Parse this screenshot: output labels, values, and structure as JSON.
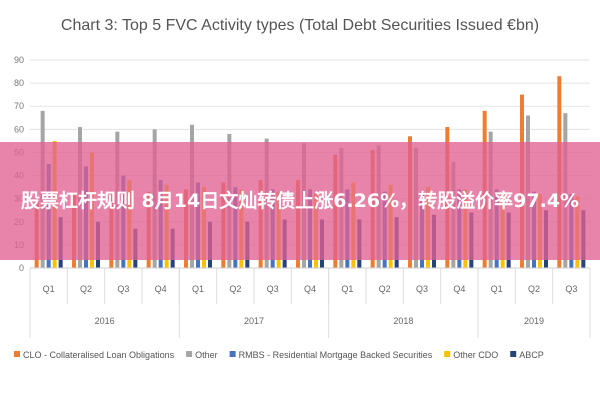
{
  "chart_data": {
    "type": "bar",
    "title": "Chart 3: Top 5 FVC Activity types (Total Debt Securities Issued €bn)",
    "ylim": [
      0,
      90
    ],
    "yticks": [
      0,
      10,
      20,
      30,
      40,
      50,
      60,
      70,
      80,
      90
    ],
    "grid": true,
    "legend_position": "bottom",
    "categories": [
      "Q1",
      "Q2",
      "Q3",
      "Q4",
      "Q1",
      "Q2",
      "Q3",
      "Q4",
      "Q1",
      "Q2",
      "Q3",
      "Q4",
      "Q1",
      "Q2",
      "Q3"
    ],
    "years": [
      {
        "label": "2016",
        "span": 4
      },
      {
        "label": "2017",
        "span": 4
      },
      {
        "label": "2018",
        "span": 4
      },
      {
        "label": "2019",
        "span": 3
      }
    ],
    "series": [
      {
        "name": "CLO - Collateralised Loan Obligations",
        "color": "#ED7D31",
        "values": [
          30,
          32,
          33,
          33,
          34,
          37,
          38,
          38,
          49,
          51,
          57,
          61,
          68,
          75,
          83
        ]
      },
      {
        "name": "Other",
        "color": "#A5A5A5",
        "values": [
          68,
          61,
          59,
          60,
          62,
          58,
          56,
          54,
          52,
          53,
          52,
          46,
          59,
          66,
          67
        ]
      },
      {
        "name": "RMBS - Residential Mortgage Backed Securities",
        "color": "#4472C4",
        "values": [
          45,
          44,
          40,
          38,
          37,
          35,
          34,
          34,
          34,
          33,
          33,
          34,
          34,
          33,
          32
        ]
      },
      {
        "name": "Other CDO",
        "color": "#FFC000",
        "values": [
          55,
          50,
          38,
          36,
          35,
          34,
          33,
          32,
          37,
          36,
          35,
          34,
          33,
          32,
          31
        ]
      },
      {
        "name": "ABCP",
        "color": "#264478",
        "values": [
          22,
          20,
          17,
          17,
          20,
          20,
          21,
          21,
          21,
          22,
          23,
          24,
          24,
          25,
          25
        ]
      }
    ]
  },
  "banner": {
    "text": "股票杠杆规则 8月14日文灿转债上涨6.26%，转股溢价率97.4%"
  }
}
